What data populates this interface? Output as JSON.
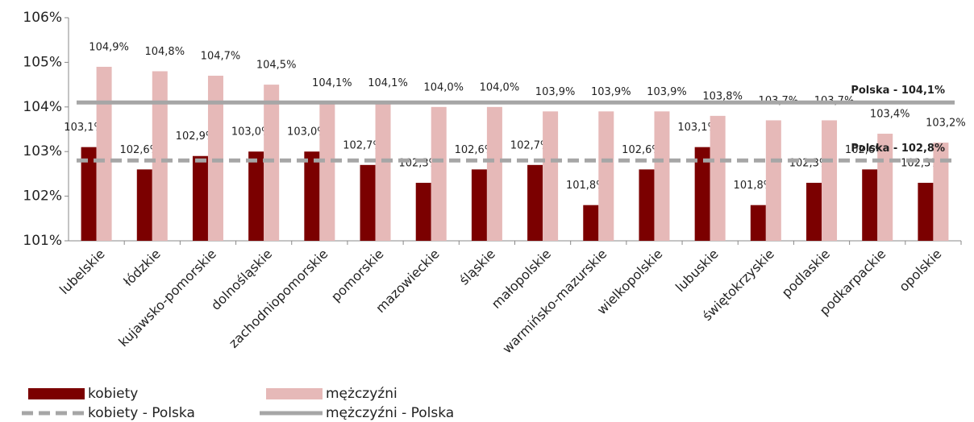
{
  "chart_data": {
    "type": "bar",
    "categories": [
      "lubelskie",
      "łódzkie",
      "kujawsko-pomorskie",
      "dolnośląskie",
      "zachodniopomorskie",
      "pomorskie",
      "mazowieckie",
      "śląskie",
      "małopolskie",
      "warmińsko-mazurskie",
      "wielkopolskie",
      "lubuskie",
      "świętokrzyskie",
      "podlaskie",
      "podkarpackie",
      "opolskie"
    ],
    "series": [
      {
        "name": "kobiety",
        "color": "#7b0000",
        "values": [
          103.1,
          102.6,
          102.9,
          103.0,
          103.0,
          102.7,
          102.3,
          102.6,
          102.7,
          101.8,
          102.6,
          103.1,
          101.8,
          102.3,
          102.6,
          102.3
        ],
        "value_labels": [
          "103,1%",
          "102,6%",
          "102,9%",
          "103,0%",
          "103,0%",
          "102,7%",
          "102,3%",
          "102,6%",
          "102,7%",
          "101,8%",
          "102,6%",
          "103,1%",
          "101,8%",
          "102,3%",
          "102,6%",
          "102,3%"
        ]
      },
      {
        "name": "mężczyźni",
        "color": "#e6b9b8",
        "values": [
          104.9,
          104.8,
          104.7,
          104.5,
          104.1,
          104.1,
          104.0,
          104.0,
          103.9,
          103.9,
          103.9,
          103.8,
          103.7,
          103.7,
          103.4,
          103.2
        ],
        "value_labels": [
          "104,9%",
          "104,8%",
          "104,7%",
          "104,5%",
          "104,1%",
          "104,1%",
          "104,0%",
          "104,0%",
          "103,9%",
          "103,9%",
          "103,9%",
          "103,8%",
          "103,7%",
          "103,7%",
          "103,4%",
          "103,2%"
        ]
      }
    ],
    "reference_lines": [
      {
        "name": "kobiety - Polska",
        "value": 102.8,
        "label": "Polska - 102,8%",
        "color": "#a6a6a6",
        "style": "dashed"
      },
      {
        "name": "mężczyźni - Polska",
        "value": 104.1,
        "label": "Polska - 104,1%",
        "color": "#a6a6a6",
        "style": "solid"
      }
    ],
    "ylim": [
      101,
      106
    ],
    "yticks": [
      {
        "value": 101,
        "label": "101%"
      },
      {
        "value": 102,
        "label": "102%"
      },
      {
        "value": 103,
        "label": "103%"
      },
      {
        "value": 104,
        "label": "104%"
      },
      {
        "value": 105,
        "label": "105%"
      },
      {
        "value": 106,
        "label": "106%"
      }
    ],
    "grid": false
  }
}
